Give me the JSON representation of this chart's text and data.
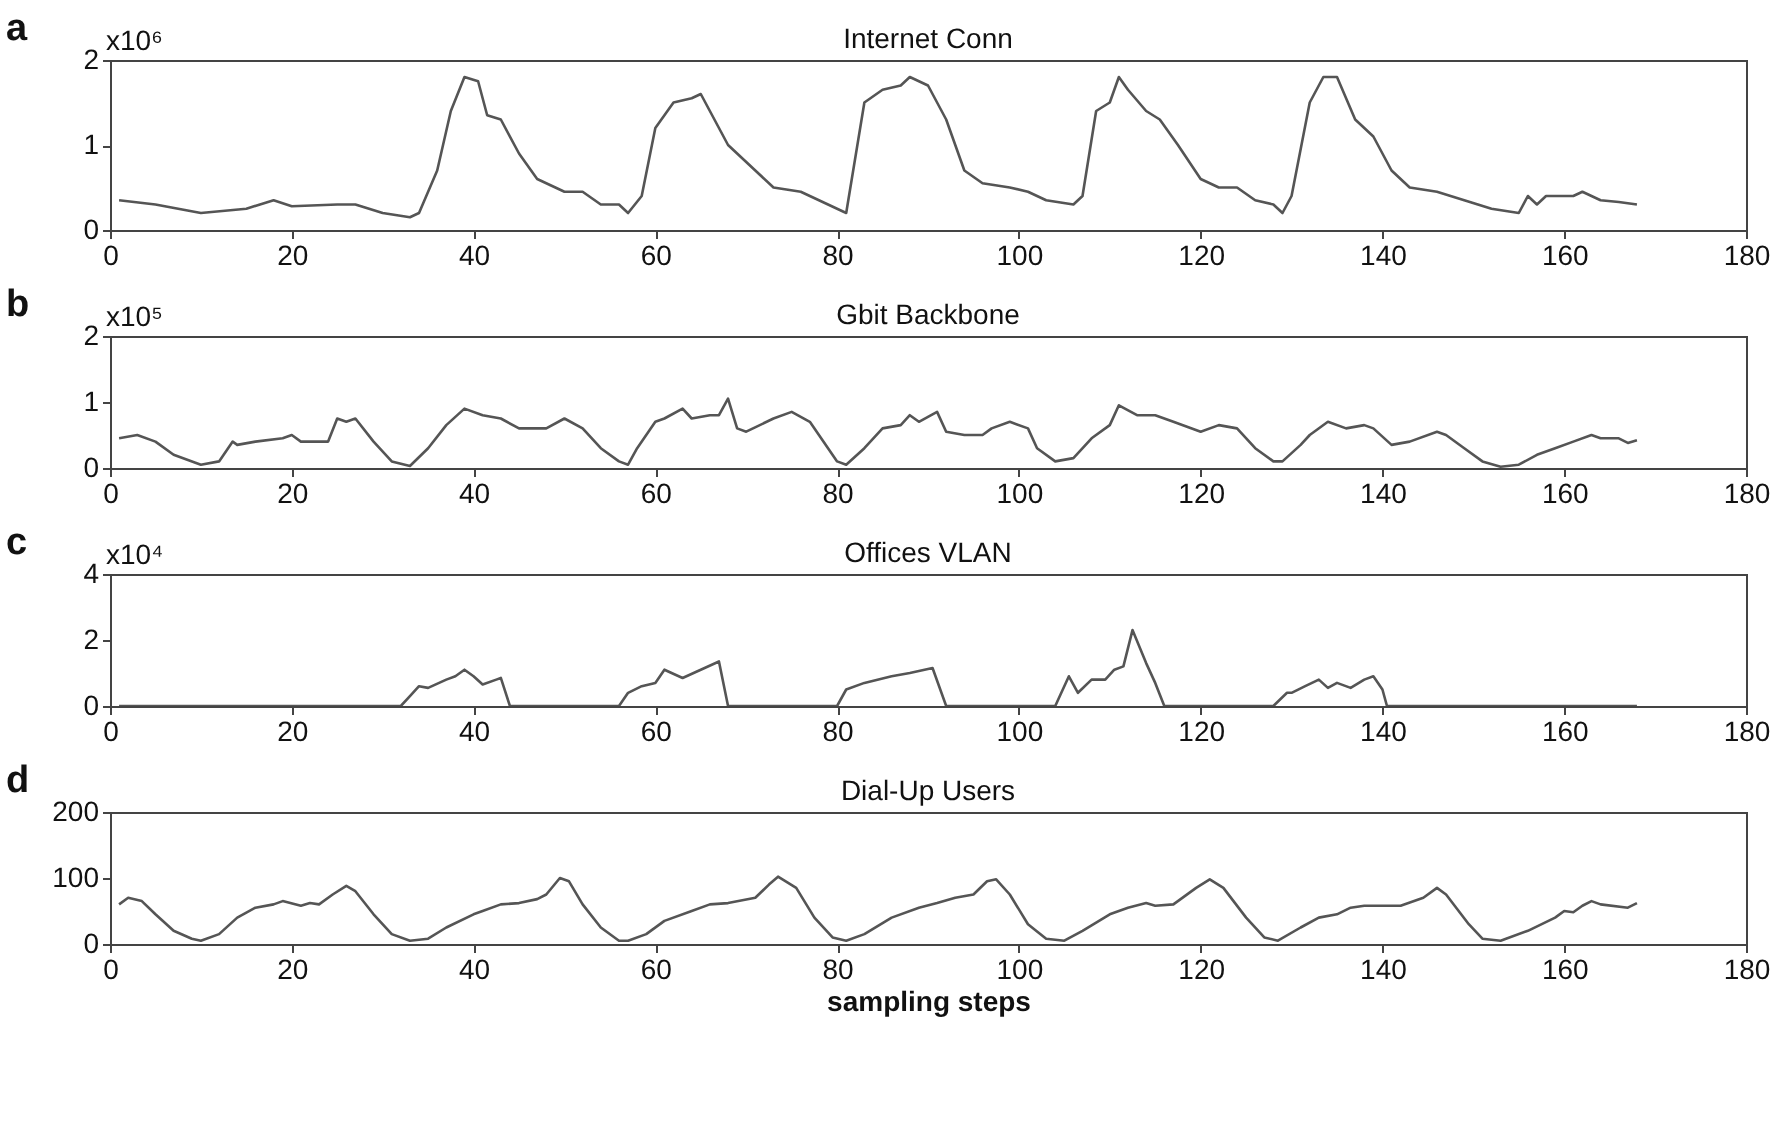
{
  "chart_data": [
    {
      "type": "line",
      "title": "Internet Conn",
      "ylabel": "x10⁶",
      "annotations": [
        "a"
      ],
      "color": "#555555",
      "xlim": [
        0,
        180
      ],
      "xticks": [
        0,
        20,
        40,
        60,
        80,
        100,
        120,
        140,
        160,
        180
      ],
      "ylim": [
        0,
        2
      ],
      "yticks": [
        0,
        1,
        2
      ],
      "x": [
        1,
        5,
        10,
        15,
        18,
        20,
        25,
        27,
        30,
        33,
        34,
        36,
        37.5,
        39,
        40.5,
        41.5,
        43,
        45,
        47,
        50,
        52,
        54,
        56,
        57,
        58.5,
        60,
        62,
        64,
        65,
        66,
        68,
        71,
        73,
        76,
        78,
        80,
        81,
        83,
        85,
        87,
        88,
        90,
        92,
        94,
        96,
        99,
        101,
        103,
        106,
        107,
        108.5,
        110,
        111,
        112,
        114,
        115.5,
        117.5,
        120,
        122,
        124,
        126,
        128,
        129,
        130,
        132,
        133.5,
        135,
        137,
        139,
        141,
        143,
        146,
        149,
        152,
        155,
        156,
        157,
        158,
        161,
        162,
        164,
        166,
        168
      ],
      "values": [
        0.35,
        0.3,
        0.2,
        0.25,
        0.35,
        0.28,
        0.3,
        0.3,
        0.2,
        0.15,
        0.2,
        0.7,
        1.4,
        1.8,
        1.75,
        1.35,
        1.3,
        0.9,
        0.6,
        0.45,
        0.45,
        0.3,
        0.3,
        0.2,
        0.4,
        1.2,
        1.5,
        1.55,
        1.6,
        1.4,
        1.0,
        0.7,
        0.5,
        0.45,
        0.35,
        0.25,
        0.2,
        1.5,
        1.65,
        1.7,
        1.8,
        1.7,
        1.3,
        0.7,
        0.55,
        0.5,
        0.45,
        0.35,
        0.3,
        0.4,
        1.4,
        1.5,
        1.8,
        1.65,
        1.4,
        1.3,
        1.0,
        0.6,
        0.5,
        0.5,
        0.35,
        0.3,
        0.2,
        0.4,
        1.5,
        1.8,
        1.8,
        1.3,
        1.1,
        0.7,
        0.5,
        0.45,
        0.35,
        0.25,
        0.2,
        0.4,
        0.3,
        0.4,
        0.4,
        0.45,
        0.35,
        0.33,
        0.3
      ]
    },
    {
      "type": "line",
      "title": "Gbit Backbone",
      "ylabel": "x10⁵",
      "annotations": [
        "b"
      ],
      "color": "#555555",
      "xlim": [
        0,
        180
      ],
      "xticks": [
        0,
        20,
        40,
        60,
        80,
        100,
        120,
        140,
        160,
        180
      ],
      "ylim": [
        0,
        2
      ],
      "yticks": [
        0,
        1,
        2
      ],
      "x": [
        1,
        3,
        5,
        7,
        10,
        12,
        13.5,
        14,
        16,
        19,
        20,
        21,
        24,
        25,
        26,
        27,
        29,
        31,
        33,
        35,
        37,
        39,
        41,
        43,
        45,
        48,
        50,
        52,
        54,
        56,
        57,
        58,
        60,
        61,
        63,
        64,
        66,
        67,
        68,
        69,
        70,
        73,
        75,
        77,
        79,
        80,
        81,
        83,
        85,
        87,
        88,
        89,
        91,
        92,
        94,
        96,
        97,
        99,
        101,
        102,
        104,
        106,
        108,
        110,
        111,
        113,
        115,
        117,
        120,
        122,
        124,
        126,
        128,
        129,
        131,
        132,
        134,
        136,
        138,
        139,
        141,
        143,
        146,
        147,
        149,
        151,
        153,
        155,
        157,
        159,
        161,
        163,
        164,
        166,
        167,
        168
      ],
      "values": [
        0.45,
        0.5,
        0.4,
        0.2,
        0.05,
        0.1,
        0.4,
        0.35,
        0.4,
        0.45,
        0.5,
        0.4,
        0.4,
        0.75,
        0.7,
        0.75,
        0.4,
        0.1,
        0.03,
        0.3,
        0.65,
        0.9,
        0.8,
        0.75,
        0.6,
        0.6,
        0.75,
        0.6,
        0.3,
        0.1,
        0.05,
        0.3,
        0.7,
        0.75,
        0.9,
        0.75,
        0.8,
        0.8,
        1.05,
        0.6,
        0.55,
        0.75,
        0.85,
        0.7,
        0.3,
        0.1,
        0.05,
        0.3,
        0.6,
        0.65,
        0.8,
        0.7,
        0.85,
        0.55,
        0.5,
        0.5,
        0.6,
        0.7,
        0.6,
        0.3,
        0.1,
        0.15,
        0.45,
        0.65,
        0.95,
        0.8,
        0.8,
        0.7,
        0.55,
        0.65,
        0.6,
        0.3,
        0.1,
        0.1,
        0.35,
        0.5,
        0.7,
        0.6,
        0.65,
        0.6,
        0.35,
        0.4,
        0.55,
        0.5,
        0.3,
        0.1,
        0.02,
        0.05,
        0.2,
        0.3,
        0.4,
        0.5,
        0.45,
        0.45,
        0.38,
        0.42
      ]
    },
    {
      "type": "line",
      "title": "Offices VLAN",
      "ylabel": "x10⁴",
      "annotations": [
        "c"
      ],
      "color": "#555555",
      "xlim": [
        0,
        180
      ],
      "xticks": [
        0,
        20,
        40,
        60,
        80,
        100,
        120,
        140,
        160,
        180
      ],
      "ylim": [
        0,
        4
      ],
      "yticks": [
        0,
        2,
        4
      ],
      "x": [
        1,
        32,
        33,
        34,
        35,
        37,
        38,
        39,
        40,
        41,
        42.5,
        43,
        44,
        56,
        57,
        58.5,
        60,
        61,
        63,
        65,
        67,
        68,
        80,
        81,
        83,
        86,
        88,
        90.5,
        92,
        104,
        105.5,
        106.5,
        108,
        109.5,
        110.5,
        111.5,
        112.5,
        114,
        115,
        116,
        128,
        129.5,
        130,
        131.5,
        133,
        134,
        135,
        136.5,
        138,
        139,
        140,
        140.5,
        168
      ],
      "values": [
        0,
        0,
        0.3,
        0.6,
        0.55,
        0.8,
        0.9,
        1.1,
        0.9,
        0.65,
        0.8,
        0.85,
        0,
        0,
        0.4,
        0.6,
        0.7,
        1.1,
        0.85,
        1.1,
        1.35,
        0,
        0,
        0.5,
        0.7,
        0.9,
        1.0,
        1.15,
        0,
        0,
        0.9,
        0.4,
        0.8,
        0.8,
        1.1,
        1.2,
        2.3,
        1.3,
        0.7,
        0,
        0,
        0.4,
        0.4,
        0.6,
        0.8,
        0.55,
        0.7,
        0.55,
        0.8,
        0.9,
        0.5,
        0,
        0
      ]
    },
    {
      "type": "line",
      "title": "Dial-Up Users",
      "xlabel": "sampling steps",
      "annotations": [
        "d"
      ],
      "color": "#555555",
      "xlim": [
        0,
        180
      ],
      "xticks": [
        0,
        20,
        40,
        60,
        80,
        100,
        120,
        140,
        160,
        180
      ],
      "ylim": [
        0,
        200
      ],
      "yticks": [
        0,
        100,
        200
      ],
      "x": [
        1,
        2,
        3.5,
        5,
        7,
        9,
        10,
        12,
        14,
        16,
        18,
        19,
        21,
        22,
        23,
        24.5,
        26,
        27,
        29,
        31,
        33,
        35,
        37,
        40,
        41,
        43,
        45,
        47,
        48,
        49.5,
        50.5,
        52,
        54,
        56,
        57,
        59,
        61,
        64,
        66,
        68,
        71,
        72.5,
        73.5,
        75.5,
        77.5,
        79.5,
        81,
        83,
        86,
        89,
        91,
        93,
        95,
        96.5,
        97.5,
        99,
        101,
        103,
        105,
        107,
        110,
        112,
        114,
        115,
        117,
        119.5,
        121,
        122.5,
        125,
        127,
        128.5,
        131,
        133,
        135,
        136.5,
        138,
        142,
        144.5,
        146,
        147,
        149.5,
        151,
        153,
        156,
        159,
        160,
        161,
        162,
        163,
        164,
        167,
        168
      ],
      "values": [
        60,
        70,
        65,
        45,
        20,
        8,
        5,
        15,
        40,
        55,
        60,
        65,
        58,
        62,
        60,
        75,
        88,
        80,
        45,
        15,
        5,
        8,
        25,
        45,
        50,
        60,
        62,
        68,
        75,
        100,
        95,
        60,
        25,
        5,
        5,
        15,
        35,
        50,
        60,
        62,
        70,
        90,
        102,
        85,
        40,
        10,
        5,
        15,
        40,
        55,
        62,
        70,
        75,
        95,
        98,
        75,
        30,
        8,
        5,
        20,
        45,
        55,
        62,
        58,
        60,
        85,
        98,
        85,
        40,
        10,
        5,
        25,
        40,
        45,
        55,
        58,
        58,
        70,
        85,
        75,
        30,
        8,
        5,
        20,
        40,
        50,
        48,
        58,
        65,
        60,
        55,
        62
      ]
    }
  ]
}
